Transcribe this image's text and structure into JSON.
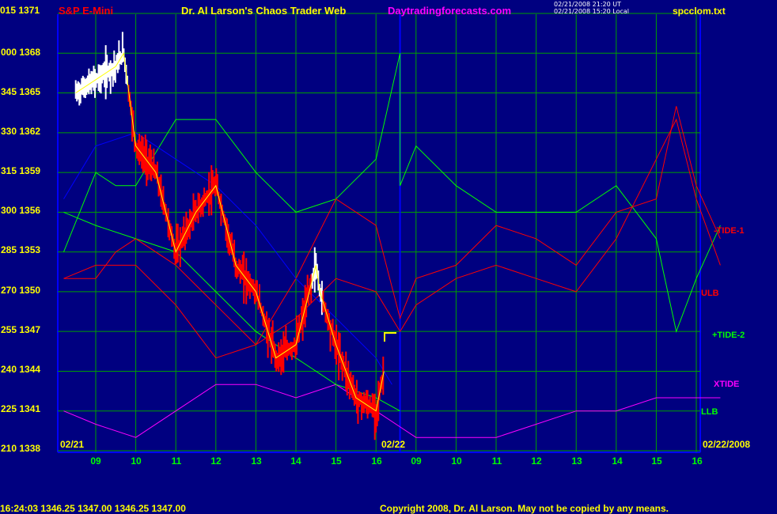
{
  "header": {
    "instrument": "S&P E-Mini",
    "title": "Dr. Al Larson's Chaos Trader Web",
    "website": "Daytradingforecasts.com",
    "timestamp_ut": "02/21/2008 21:20 UT",
    "timestamp_local": "02/21/2008 15:20 Local",
    "file": "spcclom.txt"
  },
  "footer": {
    "quote": "16:24:03  1346.25  1347.00  1346.25  1347.00",
    "copyright": "Copyright 2008, Dr. Al Larson. May not be copied by any means."
  },
  "colors": {
    "background": "#000080",
    "grid": "#00a000",
    "price_high": "#ffffff",
    "price_low": "#ff0000",
    "fast_average": "#ffff00",
    "slow_average": "#0000ff",
    "tide1": "#ff0000",
    "tide2": "#00ff00",
    "xtide": "#ff00ff",
    "ulb": "#ff0000",
    "llb": "#00ff00",
    "title": "#ffff00",
    "website": "#ff00ff"
  },
  "chart_data": {
    "type": "line",
    "y_axis": {
      "left_labels": [
        "015 1371",
        "000 1368",
        "345 1365",
        "330 1362",
        "315 1359",
        "300 1356",
        "285 1353",
        "270 1350",
        "255 1347",
        "240 1344",
        "225 1341",
        "210 1338"
      ],
      "price_range": [
        1338,
        1371
      ]
    },
    "x_axis": {
      "hour_labels": [
        "09",
        "10",
        "11",
        "12",
        "13",
        "14",
        "15",
        "16",
        "09",
        "10",
        "11",
        "12",
        "13",
        "14",
        "15",
        "16"
      ],
      "day_labels": [
        "02/21",
        "02/22",
        "02/22/2008"
      ]
    },
    "legend_labels": [
      "-TIDE-1",
      "ULB",
      "+TIDE-2",
      "XTIDE",
      "LLB"
    ],
    "series": [
      {
        "name": "price",
        "x": [
          8.5,
          9,
          9.5,
          9.7,
          10,
          10.5,
          11,
          11.5,
          12,
          12.5,
          13,
          13.5,
          14,
          14.5,
          14.6,
          15,
          15.5,
          16,
          16.2
        ],
        "y": [
          1365,
          1366,
          1367,
          1368,
          1361,
          1359,
          1353,
          1356,
          1358,
          1352,
          1350,
          1345,
          1346,
          1352,
          1350,
          1346,
          1342,
          1341,
          1344
        ]
      },
      {
        "name": "ULB",
        "x": [
          8.2,
          9,
          9.5,
          10,
          11,
          12,
          13,
          14,
          15,
          16,
          16.6,
          17,
          18,
          19,
          20,
          21,
          22,
          23,
          23.5,
          24,
          24.6
        ],
        "y": [
          1351,
          1351,
          1353,
          1354,
          1352,
          1349,
          1346,
          1351,
          1357,
          1355,
          1348,
          1351,
          1352,
          1355,
          1354,
          1352,
          1356,
          1357,
          1364,
          1358,
          1354
        ]
      },
      {
        "name": "-TIDE-1",
        "x": [
          8.2,
          9,
          10,
          11,
          12,
          13,
          14,
          15,
          16,
          16.6,
          17,
          18,
          19,
          20,
          21,
          22,
          23,
          23.5,
          24,
          24.6
        ],
        "y": [
          1351,
          1352,
          1352,
          1349,
          1345,
          1346,
          1348,
          1351,
          1350,
          1347,
          1349,
          1351,
          1352,
          1351,
          1350,
          1354,
          1360,
          1363,
          1357,
          1352
        ]
      },
      {
        "name": "+TIDE-2",
        "x": [
          8.2,
          9,
          9.5,
          10,
          11,
          12,
          13,
          14,
          15,
          16,
          16.6,
          16.6,
          17,
          18,
          19,
          20,
          21,
          22,
          23,
          23.5,
          24,
          24.6
        ],
        "y": [
          1353,
          1359,
          1358,
          1358,
          1363,
          1363,
          1359,
          1356,
          1357,
          1360,
          1368,
          1358,
          1361,
          1358,
          1356,
          1356,
          1356,
          1358,
          1354,
          1347,
          1351,
          1355
        ]
      },
      {
        "name": "LLB",
        "x": [
          8.2,
          9,
          10,
          11,
          12,
          13,
          14,
          15,
          16,
          16.6
        ],
        "y": [
          1356,
          1355,
          1354,
          1353,
          1350,
          1347,
          1345,
          1343,
          1342,
          1341
        ]
      },
      {
        "name": "slow average",
        "x": [
          8.2,
          9,
          10,
          11,
          12,
          13,
          14,
          15,
          16,
          16.4
        ],
        "y": [
          1357,
          1361,
          1362,
          1360,
          1358,
          1355,
          1351,
          1348,
          1345,
          1343
        ]
      },
      {
        "name": "XTIDE",
        "x": [
          8.2,
          9,
          10,
          11,
          12,
          13,
          14,
          15,
          16,
          17,
          18,
          19,
          20,
          21,
          22,
          23,
          24,
          24.6
        ],
        "y": [
          1341,
          1340,
          1339,
          1341,
          1343,
          1343,
          1342,
          1343,
          1341,
          1339,
          1339,
          1339,
          1340,
          1341,
          1341,
          1342,
          1342,
          1342
        ]
      }
    ]
  }
}
